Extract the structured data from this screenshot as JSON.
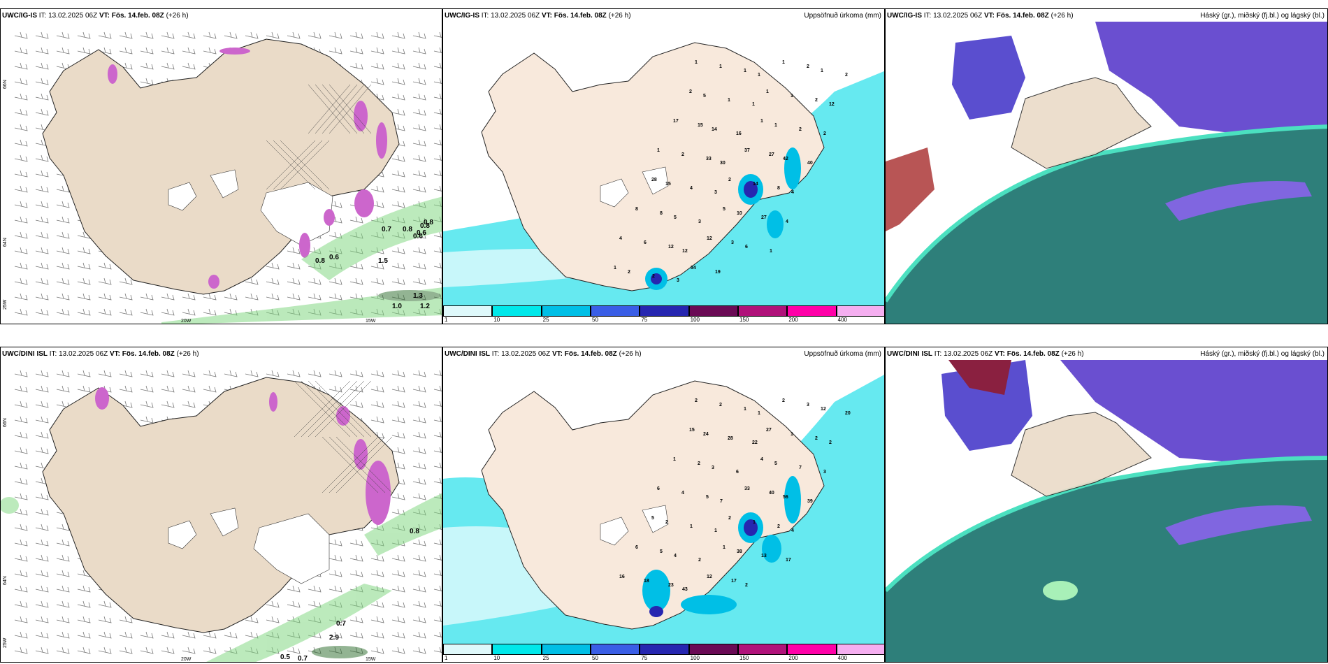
{
  "rows": [
    {
      "model": "UWC/IG-IS",
      "it": "IT: 13.02.2025 06Z",
      "vt_label": "VT:",
      "vt": "Fös. 14.feb. 08Z",
      "lead": "(+26 h)",
      "precip_title": "Uppsöfnuð úrkoma (mm)",
      "cloud_title": "Háský (gr.), miðský (fj.bl.) og lágský (bl.)",
      "wind_labels": [
        "0.7",
        "0.8",
        "0.6",
        "0.8",
        "0.6",
        "0.8",
        "0.8",
        "0.6",
        "1.5",
        "1.3",
        "1.0",
        "1.2"
      ],
      "precip_labels": [
        "1",
        "1",
        "1",
        "1",
        "1",
        "2",
        "1",
        "2",
        "2",
        "5",
        "1",
        "1",
        "1",
        "1",
        "2",
        "12",
        "17",
        "15",
        "14",
        "16",
        "1",
        "1",
        "2",
        "2",
        "1",
        "2",
        "33",
        "30",
        "37",
        "27",
        "42",
        "40",
        "28",
        "15",
        "4",
        "3",
        "2",
        "14",
        "8",
        "4",
        "8",
        "8",
        "5",
        "3",
        "5",
        "10",
        "27",
        "4",
        "4",
        "6",
        "12",
        "12",
        "12",
        "3",
        "6",
        "1",
        "1",
        "2",
        "2",
        "3",
        "34",
        "19"
      ]
    },
    {
      "model": "UWC/DINI ISL",
      "it": "IT: 13.02.2025 06Z",
      "vt_label": "VT:",
      "vt": "Fös. 14.feb. 08Z",
      "lead": "(+26 h)",
      "precip_title": "Uppsöfnuð úrkoma (mm)",
      "cloud_title": "Háský (gr.), miðský (fj.bl.) og lágský (bl.)",
      "wind_labels": [
        "0.8",
        "0.7",
        "2.9",
        "0.5",
        "0.7"
      ],
      "precip_labels": [
        "2",
        "2",
        "1",
        "1",
        "2",
        "3",
        "12",
        "20",
        "15",
        "24",
        "28",
        "22",
        "27",
        "1",
        "2",
        "2",
        "1",
        "2",
        "3",
        "6",
        "4",
        "5",
        "7",
        "3",
        "6",
        "4",
        "5",
        "7",
        "33",
        "40",
        "56",
        "39",
        "5",
        "2",
        "1",
        "1",
        "2",
        "1",
        "2",
        "4",
        "6",
        "5",
        "4",
        "2",
        "1",
        "38",
        "13",
        "17",
        "16",
        "18",
        "23",
        "43",
        "12",
        "17",
        "2"
      ]
    }
  ],
  "axes": {
    "lon_labels": [
      "20W",
      "15W"
    ],
    "lat_labels_left": [
      "66N",
      "64N",
      "25W"
    ],
    "lat_labels_right": [
      "66N",
      "64N"
    ]
  },
  "colorbar": {
    "ticks": [
      "1",
      "10",
      "25",
      "50",
      "75",
      "100",
      "150",
      "200",
      "400"
    ],
    "colors": [
      "#dff9fb",
      "#00e8ea",
      "#00bfe6",
      "#3a5ee6",
      "#2626b0",
      "#6a0a55",
      "#b0127a",
      "#ff00a8",
      "#f5aef0"
    ]
  },
  "colors": {
    "land": "#eadbc8",
    "sea_precip": "#66e9f0",
    "cloud_dark": "#2e7f7a",
    "cloud_blue": "#6a4fd0"
  }
}
